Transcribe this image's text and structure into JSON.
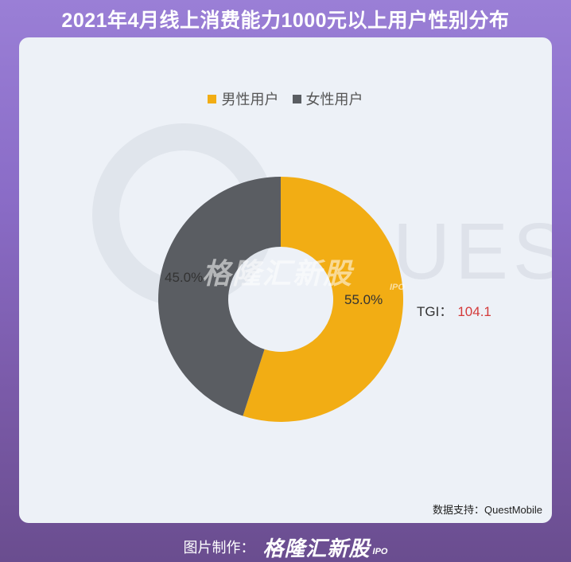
{
  "page_title": "2021年4月线上消费能力1000元以上用户性别分布",
  "colors": {
    "male": "#f2ad14",
    "female": "#5a5d62",
    "tgi_value": "#d43a3a"
  },
  "chart_data": {
    "type": "pie",
    "donut": true,
    "labels": [
      "男性用户",
      "女性用户"
    ],
    "values": [
      55.0,
      45.0
    ],
    "value_labels": [
      "55.0%",
      "45.0%"
    ],
    "legend_position": "top-center",
    "annotation": {
      "label": "TGI：",
      "value": "104.1"
    }
  },
  "source": "数据支持：QuestMobile",
  "watermark": {
    "word": "UES",
    "logo": "格隆汇新股",
    "ipo": "IPO"
  },
  "footer": {
    "label": "图片制作：",
    "logo": "格隆汇新股",
    "ipo": "IPO"
  }
}
